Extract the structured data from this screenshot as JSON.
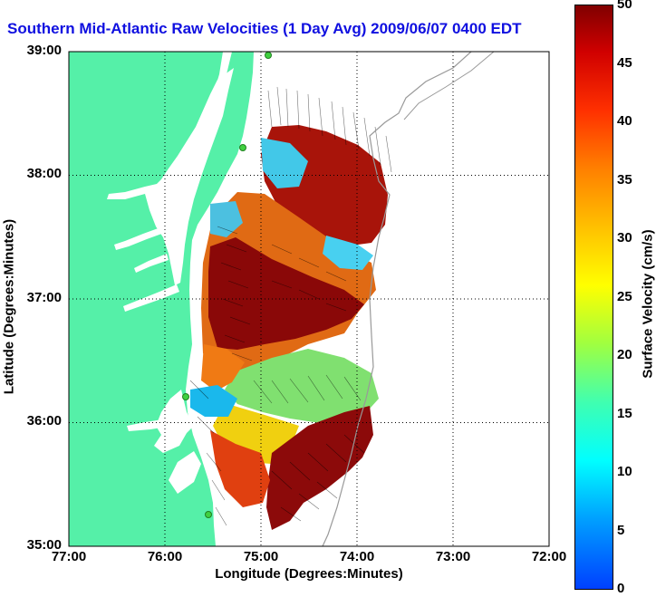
{
  "title": "Southern Mid-Atlantic Raw Velocities (1 Day Avg) 2009/06/07 0400 EDT",
  "x_axis": {
    "label": "Longitude (Degrees:Minutes)",
    "ticks": [
      "77:00",
      "76:00",
      "75:00",
      "74:00",
      "73:00",
      "72:00"
    ],
    "range": [
      -77,
      -72
    ]
  },
  "y_axis": {
    "label": "Latitude (Degrees:Minutes)",
    "ticks": [
      "39:00",
      "38:00",
      "37:00",
      "36:00",
      "35:00"
    ],
    "range": [
      35,
      39
    ]
  },
  "colorbar": {
    "label": "Surface Velocity (cm/s)",
    "ticks": [
      "50",
      "45",
      "40",
      "35",
      "30",
      "25",
      "20",
      "15",
      "10",
      "5",
      "0"
    ],
    "range": [
      0,
      50
    ]
  },
  "colors": {
    "land": "#55f0a8",
    "water": "#ffffff",
    "title": "#1010e0",
    "contour": "#999999",
    "grid": "#000000"
  }
}
